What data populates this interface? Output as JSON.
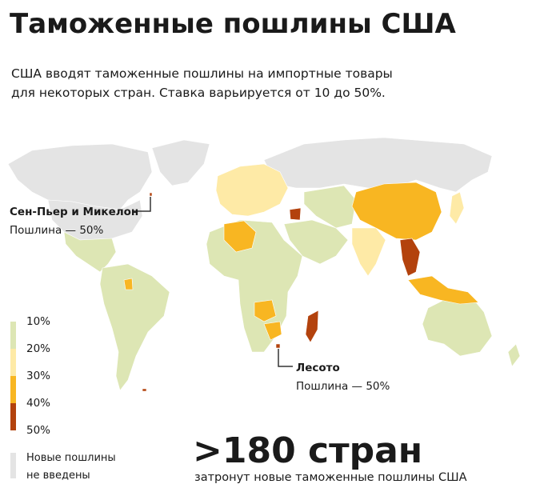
{
  "title": "Таможенные пошлины США",
  "subtitle": [
    "США вводят таможенные пошлины на импортные товары",
    "для некоторых стран. Ставка варьируется от 10 до 50%."
  ],
  "annotations": [
    {
      "name": "Сен-Пьер и Микелон",
      "detail": "Пошлина — 50%"
    },
    {
      "name": "Лесото",
      "detail": "Пошлина — 50%"
    }
  ],
  "legend": {
    "labels": [
      "10%",
      "20%",
      "30%",
      "40%",
      "50%"
    ],
    "colors": [
      "#dde6b4",
      "#feeaa6",
      "#f8b622",
      "#b3420d"
    ],
    "none_label": [
      "Новые пошлины",
      "не введены"
    ],
    "none_color": "#e4e4e4"
  },
  "stat": {
    "value": ">180 стран",
    "caption": "затронут новые таможенные пошлины США"
  }
}
